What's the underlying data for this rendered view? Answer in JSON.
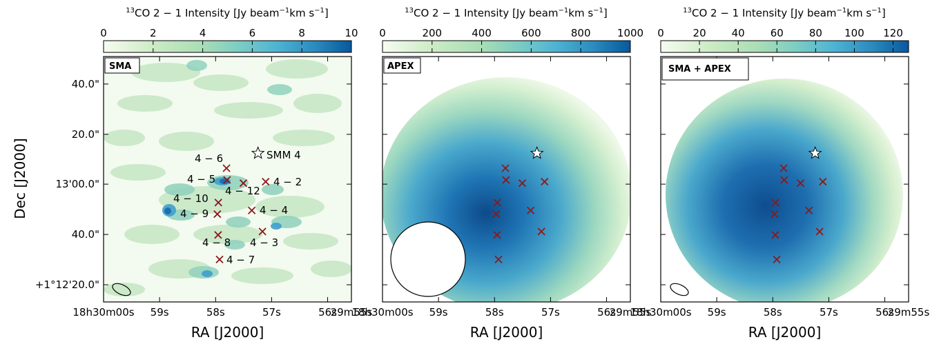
{
  "figure": {
    "ylabel": "Dec [J2000]",
    "y_ticks": [
      "40.0\"",
      "20.0\"",
      "13'00.0\"",
      "40.0\"",
      "+1°12'20.0\""
    ],
    "x_ticks": [
      "18h30m00s",
      "59s",
      "58s",
      "57s",
      "56s",
      "29m55s"
    ],
    "xlabel": "RA [J2000]",
    "colors": {
      "marker": "#8b1a1a",
      "frame": "#000000",
      "beam": "#ffffff"
    }
  },
  "chart_data": [
    {
      "type": "heatmap",
      "panel_label": "SMA",
      "colorbar_label": "13CO 2 − 1 Intensity [Jy beam−1km s−1]",
      "colorbar_ticks": [
        0,
        2,
        4,
        6,
        8,
        10
      ],
      "colorbar_range": [
        0,
        10
      ],
      "colormap": "GnBu",
      "xlabel": "RA [J2000]",
      "source_labels": [
        "4 − 6",
        "4 − 5",
        "4 − 12",
        "4 − 2",
        "4 − 10",
        "4 − 9",
        "4 − 4",
        "4 − 8",
        "4 − 3",
        "4 − 7"
      ],
      "star_label": "SMM 4"
    },
    {
      "type": "heatmap",
      "panel_label": "APEX",
      "colorbar_label": "13CO 2 − 1 Intensity [Jy beam−1km s−1]",
      "colorbar_ticks": [
        0,
        200,
        400,
        600,
        800,
        1000
      ],
      "colorbar_range": [
        0,
        1000
      ],
      "colormap": "GnBu",
      "xlabel": "RA [J2000]"
    },
    {
      "type": "heatmap",
      "panel_label": "SMA + APEX",
      "colorbar_label": "13CO 2 − 1 Intensity [Jy beam−1km s−1]",
      "colorbar_ticks": [
        0,
        20,
        40,
        60,
        80,
        100,
        120
      ],
      "colorbar_range": [
        0,
        128
      ],
      "colormap": "GnBu",
      "xlabel": "RA [J2000]"
    }
  ]
}
